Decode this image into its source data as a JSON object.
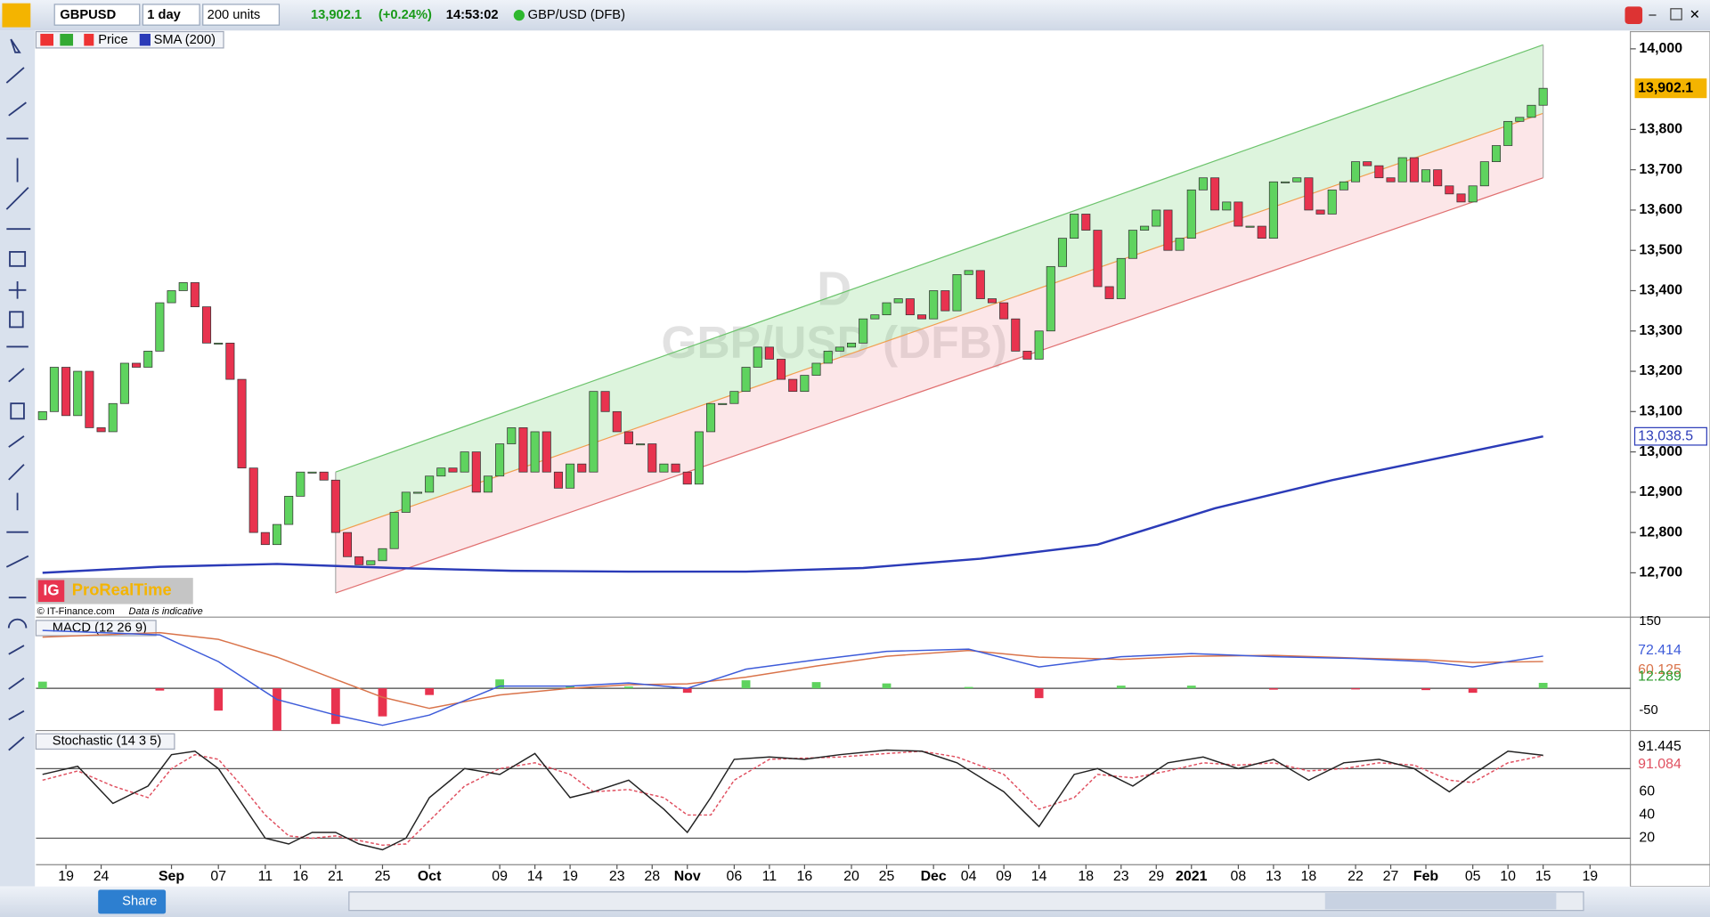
{
  "toolbar": {
    "symbol": "GBPUSD",
    "timeframe": "1 day",
    "units": "200 units",
    "price": "13,902.1",
    "change": "(+0.24%)",
    "time": "14:53:02",
    "instrument": "GBP/USD (DFB)"
  },
  "legend": {
    "price": "Price",
    "sma": "SMA (200)"
  },
  "watermark": {
    "period": "D",
    "instrument": "GBP/USD (DFB)"
  },
  "logo": {
    "ig": "IG",
    "brand": "ProRealTime",
    "source": "© IT-Finance.com",
    "note": "Data is indicative"
  },
  "bottom_bar": {
    "share": "Share"
  },
  "chart_data": {
    "type": "candlestick",
    "first_open": 13080,
    "close": [
      13100,
      13210,
      13090,
      13200,
      13060,
      13050,
      13120,
      13220,
      13210,
      13250,
      13370,
      13400,
      13420,
      13360,
      13270,
      13270,
      13180,
      12960,
      12800,
      12770,
      12820,
      12890,
      12950,
      12950,
      12930,
      12800,
      12740,
      12720,
      12730,
      12760,
      12850,
      12900,
      12900,
      12940,
      12960,
      12950,
      13000,
      12900,
      12940,
      13020,
      13060,
      12950,
      13050,
      12950,
      12910,
      12970,
      12950,
      13150,
      13100,
      13050,
      13020,
      13020,
      12950,
      12970,
      12950,
      12920,
      13050,
      13120,
      13120,
      13150,
      13210,
      13260,
      13230,
      13180,
      13150,
      13190,
      13220,
      13250,
      13260,
      13270,
      13330,
      13340,
      13370,
      13380,
      13340,
      13330,
      13400,
      13350,
      13440,
      13450,
      13380,
      13370,
      13330,
      13250,
      13230,
      13300,
      13460,
      13530,
      13590,
      13550,
      13410,
      13380,
      13480,
      13550,
      13560,
      13600,
      13500,
      13530,
      13650,
      13680,
      13600,
      13620,
      13560,
      13560,
      13530,
      13670,
      13670,
      13680,
      13600,
      13590,
      13650,
      13670,
      13720,
      13710,
      13680,
      13670,
      13730,
      13670,
      13700,
      13660,
      13640,
      13620,
      13660,
      13720,
      13760,
      13820,
      13830,
      13860,
      13902.1
    ],
    "colors": {
      "up": "#5fd35f",
      "down": "#e8334f",
      "sma": "#2b3bb8"
    },
    "ylim": [
      12590,
      14040
    ],
    "yticks": [
      {
        "value": 14000,
        "label": "14,000"
      },
      {
        "value": 13800,
        "label": "13,800"
      },
      {
        "value": 13700,
        "label": "13,700"
      },
      {
        "value": 13600,
        "label": "13,600"
      },
      {
        "value": 13500,
        "label": "13,500"
      },
      {
        "value": 13400,
        "label": "13,400"
      },
      {
        "value": 13300,
        "label": "13,300"
      },
      {
        "value": 13200,
        "label": "13,200"
      },
      {
        "value": 13100,
        "label": "13,100"
      },
      {
        "value": 13000,
        "label": "13,000"
      },
      {
        "value": 12900,
        "label": "12,900"
      },
      {
        "value": 12800,
        "label": "12,800"
      },
      {
        "value": 12700,
        "label": "12,700"
      }
    ],
    "xticks": [
      {
        "value": 2,
        "label": "19"
      },
      {
        "value": 5,
        "label": "24"
      },
      {
        "value": 11,
        "label": "Sep"
      },
      {
        "value": 15,
        "label": "07"
      },
      {
        "value": 19,
        "label": "11"
      },
      {
        "value": 22,
        "label": "16"
      },
      {
        "value": 25,
        "label": "21"
      },
      {
        "value": 29,
        "label": "25"
      },
      {
        "value": 33,
        "label": "Oct"
      },
      {
        "value": 39,
        "label": "09"
      },
      {
        "value": 42,
        "label": "14"
      },
      {
        "value": 45,
        "label": "19"
      },
      {
        "value": 49,
        "label": "23"
      },
      {
        "value": 52,
        "label": "28"
      },
      {
        "value": 55,
        "label": "Nov"
      },
      {
        "value": 59,
        "label": "06"
      },
      {
        "value": 62,
        "label": "11"
      },
      {
        "value": 65,
        "label": "16"
      },
      {
        "value": 69,
        "label": "20"
      },
      {
        "value": 72,
        "label": "25"
      },
      {
        "value": 76,
        "label": "Dec"
      },
      {
        "value": 79,
        "label": "04"
      },
      {
        "value": 82,
        "label": "09"
      },
      {
        "value": 85,
        "label": "14"
      },
      {
        "value": 89,
        "label": "18"
      },
      {
        "value": 92,
        "label": "23"
      },
      {
        "value": 95,
        "label": "29"
      },
      {
        "value": 98,
        "label": "2021"
      },
      {
        "value": 102,
        "label": "08"
      },
      {
        "value": 105,
        "label": "13"
      },
      {
        "value": 108,
        "label": "18"
      },
      {
        "value": 112,
        "label": "22"
      },
      {
        "value": 115,
        "label": "27"
      },
      {
        "value": 118,
        "label": "Feb"
      },
      {
        "value": 122,
        "label": "05"
      },
      {
        "value": 125,
        "label": "10"
      },
      {
        "value": 128,
        "label": "15"
      },
      {
        "value": 132,
        "label": "19"
      }
    ],
    "channel": {
      "x": [
        25,
        128
      ],
      "upper": [
        12950,
        14010
      ],
      "middle": [
        12800,
        13840
      ],
      "lower": [
        12650,
        13680
      ]
    },
    "sma": {
      "x": [
        0,
        10,
        20,
        30,
        40,
        50,
        60,
        70,
        80,
        90,
        100,
        110,
        120,
        128
      ],
      "values": [
        12700,
        12715,
        12722,
        12712,
        12705,
        12703,
        12703,
        12712,
        12735,
        12770,
        12860,
        12930,
        12990,
        13038.5
      ],
      "last_label": "13,038.5"
    },
    "macd": {
      "title": "MACD (12 26 9)",
      "ylim": [
        -85,
        150
      ],
      "yticks": [
        150,
        -50
      ],
      "x": [
        0,
        10,
        15,
        20,
        25,
        29,
        33,
        39,
        45,
        50,
        55,
        60,
        66,
        72,
        79,
        85,
        92,
        98,
        105,
        112,
        118,
        122,
        128
      ],
      "macd": [
        130,
        120,
        60,
        -25,
        -60,
        -83,
        -60,
        5,
        5,
        12,
        0,
        43,
        64,
        83,
        88,
        48,
        71,
        78,
        71,
        67,
        60,
        48,
        72.414
      ],
      "signal": [
        115,
        125,
        110,
        70,
        20,
        -20,
        -45,
        -15,
        0,
        8,
        10,
        25,
        50,
        72,
        85,
        70,
        65,
        72,
        74,
        68,
        64,
        58,
        60.125
      ],
      "histogram": [
        15,
        -5,
        -50,
        -95,
        -80,
        -63,
        -15,
        20,
        5,
        4,
        -10,
        18,
        14,
        11,
        3,
        -22,
        6,
        6,
        -3,
        -1,
        -4,
        -10,
        12.289
      ],
      "colors": {
        "macd": "#3d5bd9",
        "signal": "#d9734a",
        "up": "#5fd35f",
        "down": "#e8334f"
      }
    },
    "stochastic": {
      "title": "Stochastic (14 3 5)",
      "ylim": [
        0,
        110
      ],
      "yticks": [
        20,
        40,
        60
      ],
      "levels": [
        20,
        80
      ],
      "x": [
        0,
        3,
        6,
        9,
        11,
        13,
        15,
        17,
        19,
        21,
        23,
        25,
        27,
        29,
        31,
        33,
        36,
        39,
        42,
        45,
        47,
        50,
        53,
        55,
        57,
        59,
        62,
        65,
        68,
        72,
        75,
        78,
        82,
        85,
        88,
        90,
        93,
        96,
        99,
        102,
        105,
        108,
        111,
        114,
        117,
        120,
        122,
        125,
        128
      ],
      "k": [
        75,
        82,
        50,
        65,
        92,
        95,
        80,
        50,
        20,
        15,
        25,
        25,
        15,
        10,
        20,
        55,
        80,
        75,
        93,
        55,
        60,
        70,
        45,
        25,
        55,
        88,
        90,
        88,
        92,
        96,
        95,
        85,
        60,
        30,
        75,
        80,
        65,
        85,
        90,
        80,
        88,
        70,
        85,
        88,
        80,
        60,
        75,
        95,
        91.445
      ],
      "d": [
        70,
        78,
        65,
        55,
        80,
        92,
        88,
        65,
        40,
        22,
        20,
        22,
        18,
        14,
        15,
        35,
        65,
        80,
        85,
        75,
        60,
        62,
        55,
        40,
        40,
        70,
        88,
        89,
        90,
        93,
        95,
        90,
        75,
        45,
        55,
        75,
        72,
        78,
        85,
        83,
        85,
        78,
        80,
        85,
        83,
        70,
        68,
        85,
        91.084
      ],
      "colors": {
        "k": "#222222",
        "d": "#e05060"
      }
    }
  }
}
